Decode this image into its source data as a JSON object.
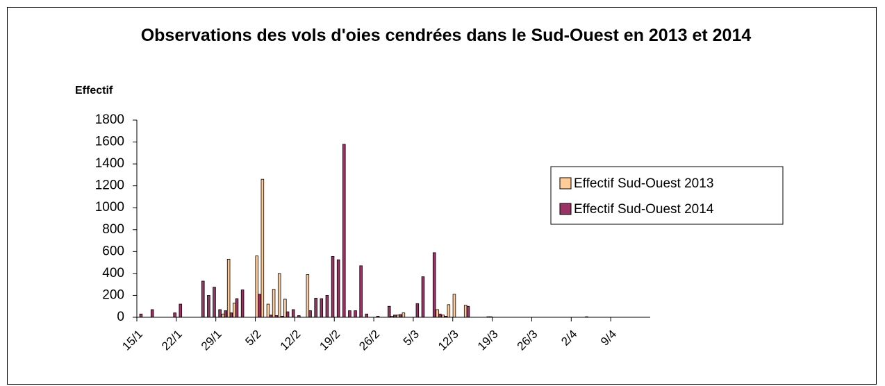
{
  "chart_data": {
    "type": "bar",
    "title": "Observations des vols d'oies cendrées dans le Sud-Ouest en 2013 et 2014",
    "y_label": "Effectif",
    "categories": [
      "15/1",
      null,
      null,
      null,
      null,
      null,
      null,
      "22/1",
      null,
      null,
      null,
      null,
      null,
      null,
      "29/1",
      null,
      null,
      null,
      null,
      null,
      null,
      "5/2",
      null,
      null,
      null,
      null,
      null,
      null,
      "12/2",
      null,
      null,
      null,
      null,
      null,
      null,
      "19/2",
      null,
      null,
      null,
      null,
      null,
      null,
      "26/2",
      null,
      null,
      null,
      null,
      null,
      null,
      "5/3",
      null,
      null,
      null,
      null,
      null,
      null,
      "12/3",
      null,
      null,
      null,
      null,
      null,
      null,
      "19/3",
      null,
      null,
      null,
      null,
      null,
      null,
      "26/3",
      null,
      null,
      null,
      null,
      null,
      null,
      "2/4",
      null,
      null,
      null,
      null,
      null,
      null,
      "9/4",
      null,
      null,
      null,
      null,
      null,
      null
    ],
    "series": [
      {
        "name": "Effectif Sud-Ouest 2013",
        "color": "#ffcc99",
        "values": [
          0,
          0,
          0,
          0,
          0,
          0,
          0,
          0,
          0,
          0,
          0,
          0,
          0,
          0,
          0,
          30,
          530,
          130,
          0,
          0,
          0,
          560,
          1260,
          120,
          255,
          400,
          165,
          0,
          0,
          0,
          390,
          0,
          0,
          0,
          0,
          0,
          0,
          0,
          0,
          0,
          0,
          0,
          0,
          0,
          0,
          10,
          20,
          40,
          0,
          0,
          0,
          0,
          0,
          70,
          20,
          115,
          210,
          0,
          110,
          0,
          0,
          0,
          5,
          0,
          0,
          0,
          0,
          0,
          0,
          0,
          0,
          0,
          0,
          0,
          0,
          0,
          0,
          0,
          0,
          0,
          0,
          0,
          0,
          0,
          0,
          0,
          0,
          0,
          0,
          0,
          0
        ]
      },
      {
        "name": "Effectif Sud-Ouest 2014",
        "color": "#993366",
        "values": [
          30,
          0,
          70,
          0,
          0,
          0,
          40,
          120,
          0,
          0,
          0,
          330,
          200,
          275,
          70,
          60,
          40,
          170,
          250,
          0,
          0,
          210,
          0,
          20,
          15,
          10,
          50,
          70,
          15,
          0,
          60,
          175,
          170,
          200,
          555,
          525,
          1580,
          60,
          60,
          470,
          30,
          0,
          10,
          0,
          100,
          20,
          25,
          0,
          0,
          125,
          370,
          0,
          590,
          30,
          10,
          0,
          0,
          0,
          100,
          0,
          0,
          0,
          5,
          0,
          0,
          0,
          0,
          0,
          0,
          0,
          0,
          0,
          0,
          0,
          0,
          0,
          0,
          0,
          0,
          5,
          0,
          0,
          0,
          0,
          0,
          0,
          0,
          0,
          0,
          0,
          0
        ]
      }
    ],
    "ylim": [
      0,
      1800
    ],
    "yticks": [
      0,
      200,
      400,
      600,
      800,
      1000,
      1200,
      1400,
      1600,
      1800
    ],
    "grid": false,
    "legend": "right"
  }
}
